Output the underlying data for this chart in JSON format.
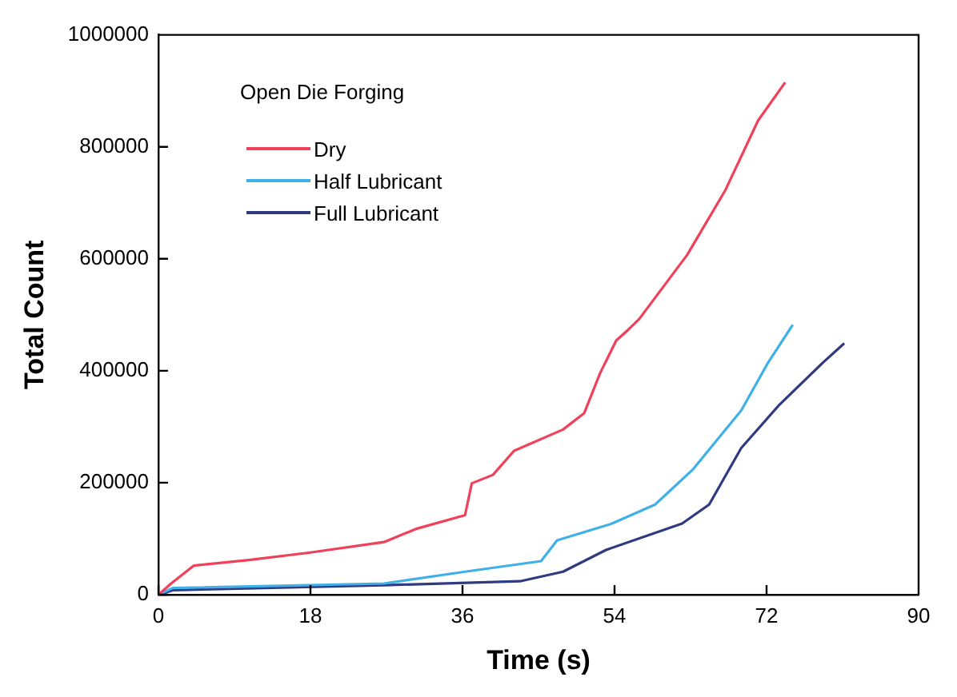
{
  "chart_data": {
    "type": "line",
    "xlabel": "Time (s)",
    "ylabel": "Total Count",
    "legend_title": "Open Die Forging",
    "xlim": [
      0,
      90
    ],
    "xticks": [
      0,
      18,
      36,
      54,
      72,
      90
    ],
    "ylim": [
      0,
      1000000
    ],
    "yticks": [
      0,
      200000,
      400000,
      600000,
      800000,
      1000000
    ],
    "grid": false,
    "legend": "top left",
    "marker": "none",
    "line_style": "solid",
    "series": [
      {
        "name": "Dry",
        "color": "#f0405a",
        "x": [
          0,
          1.5,
          4.2,
          10.7,
          17.8,
          26.7,
          30.6,
          36.3,
          37.1,
          39.6,
          42.1,
          47.9,
          50.4,
          52.3,
          54.2,
          55.6,
          56.9,
          62.6,
          67.1,
          71,
          74.2
        ],
        "values": [
          0,
          20000,
          52000,
          62000,
          75000,
          94000,
          118000,
          142000,
          199000,
          214000,
          257000,
          295000,
          324000,
          396000,
          454000,
          473000,
          492000,
          607000,
          722000,
          847000,
          915000
        ]
      },
      {
        "name": "Half Lubricant",
        "color": "#40b0e8",
        "x": [
          0,
          1.7,
          26.7,
          36.3,
          45.3,
          47.2,
          53.7,
          58.8,
          63.3,
          69,
          72.2,
          75.1
        ],
        "values": [
          0,
          12000,
          20000,
          41000,
          60000,
          97000,
          127000,
          161000,
          224000,
          329000,
          415000,
          482000
        ]
      },
      {
        "name": "Full Lubricant",
        "color": "#303a80",
        "x": [
          0,
          1.7,
          26.7,
          42.8,
          47.9,
          53,
          62,
          65.2,
          69,
          73.5,
          78.7,
          81.2
        ],
        "values": [
          0,
          8000,
          17000,
          24000,
          41000,
          80000,
          127000,
          161000,
          262000,
          339000,
          415000,
          449000
        ]
      }
    ]
  }
}
